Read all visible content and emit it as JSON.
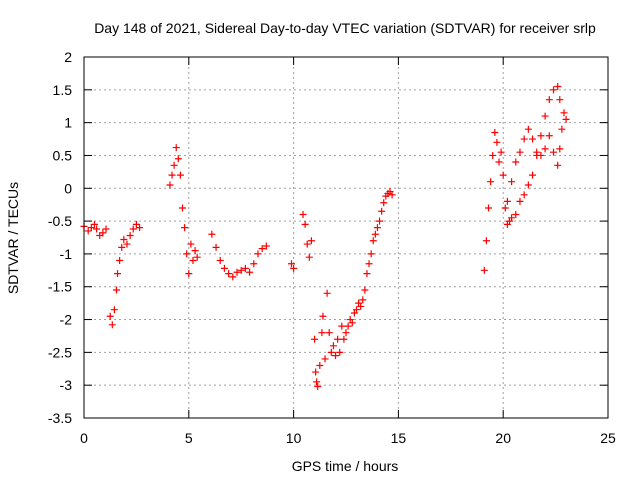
{
  "chart_data": {
    "type": "scatter",
    "title": "Day 148 of 2021, Sidereal Day-to-day VTEC variation (SDTVAR) for receiver srlp",
    "xlabel": "GPS time / hours",
    "ylabel": "SDTVAR / TECUs",
    "xlim": [
      0,
      25
    ],
    "ylim": [
      -3.5,
      2
    ],
    "xticks": [
      0,
      5,
      10,
      15,
      20,
      25
    ],
    "yticks": [
      -3.5,
      -3,
      -2.5,
      -2,
      -1.5,
      -1,
      -0.5,
      0,
      0.5,
      1,
      1.5,
      2
    ],
    "grid": "dotted",
    "marker": "+",
    "series": [
      {
        "color": "#ff0000",
        "segments": [
          [
            [
              0.0,
              -0.58
            ],
            [
              0.2,
              -0.65
            ],
            [
              0.35,
              -0.6
            ],
            [
              0.5,
              -0.55
            ],
            [
              0.6,
              -0.62
            ],
            [
              0.75,
              -0.72
            ],
            [
              0.9,
              -0.68
            ],
            [
              1.05,
              -0.62
            ]
          ],
          [
            [
              1.25,
              -1.95
            ],
            [
              1.35,
              -2.08
            ],
            [
              1.45,
              -1.85
            ],
            [
              1.55,
              -1.55
            ],
            [
              1.6,
              -1.3
            ],
            [
              1.7,
              -1.1
            ],
            [
              1.8,
              -0.9
            ],
            [
              1.9,
              -0.78
            ],
            [
              2.05,
              -0.85
            ],
            [
              2.2,
              -0.72
            ],
            [
              2.35,
              -0.62
            ],
            [
              2.5,
              -0.55
            ],
            [
              2.65,
              -0.6
            ]
          ],
          [
            [
              4.1,
              0.05
            ],
            [
              4.2,
              0.2
            ],
            [
              4.3,
              0.35
            ],
            [
              4.4,
              0.62
            ],
            [
              4.5,
              0.45
            ],
            [
              4.6,
              0.2
            ],
            [
              4.7,
              -0.3
            ],
            [
              4.8,
              -0.6
            ],
            [
              4.9,
              -1.0
            ],
            [
              5.0,
              -1.3
            ],
            [
              5.1,
              -0.85
            ],
            [
              5.2,
              -1.1
            ],
            [
              5.3,
              -0.95
            ],
            [
              5.4,
              -1.05
            ]
          ],
          [
            [
              6.1,
              -0.7
            ],
            [
              6.3,
              -0.9
            ],
            [
              6.5,
              -1.1
            ],
            [
              6.7,
              -1.22
            ],
            [
              6.9,
              -1.3
            ],
            [
              7.1,
              -1.35
            ],
            [
              7.3,
              -1.28
            ],
            [
              7.5,
              -1.25
            ],
            [
              7.7,
              -1.22
            ],
            [
              7.9,
              -1.28
            ],
            [
              8.1,
              -1.15
            ],
            [
              8.3,
              -1.0
            ],
            [
              8.5,
              -0.92
            ],
            [
              8.7,
              -0.88
            ]
          ],
          [
            [
              9.9,
              -1.15
            ],
            [
              10.0,
              -1.22
            ]
          ],
          [
            [
              10.45,
              -0.4
            ],
            [
              10.55,
              -0.55
            ],
            [
              10.65,
              -0.85
            ],
            [
              10.75,
              -1.05
            ],
            [
              10.85,
              -0.8
            ]
          ],
          [
            [
              11.0,
              -2.3
            ],
            [
              11.05,
              -2.8
            ],
            [
              11.1,
              -2.95
            ],
            [
              11.15,
              -3.02
            ],
            [
              11.25,
              -2.7
            ],
            [
              11.35,
              -2.2
            ],
            [
              11.4,
              -1.95
            ],
            [
              11.5,
              -2.6
            ],
            [
              11.6,
              -1.6
            ],
            [
              11.7,
              -2.2
            ],
            [
              11.8,
              -2.5
            ],
            [
              11.9,
              -2.4
            ],
            [
              12.0,
              -2.55
            ],
            [
              12.1,
              -2.3
            ],
            [
              12.2,
              -2.5
            ],
            [
              12.3,
              -2.1
            ],
            [
              12.4,
              -2.3
            ],
            [
              12.5,
              -2.2
            ],
            [
              12.6,
              -2.1
            ],
            [
              12.7,
              -2.0
            ],
            [
              12.8,
              -2.05
            ],
            [
              12.9,
              -1.9
            ],
            [
              13.0,
              -1.85
            ],
            [
              13.1,
              -1.75
            ],
            [
              13.2,
              -1.8
            ],
            [
              13.3,
              -1.7
            ],
            [
              13.4,
              -1.55
            ],
            [
              13.5,
              -1.3
            ],
            [
              13.6,
              -1.15
            ],
            [
              13.7,
              -1.0
            ],
            [
              13.8,
              -0.8
            ],
            [
              13.9,
              -0.7
            ],
            [
              14.0,
              -0.6
            ],
            [
              14.1,
              -0.5
            ],
            [
              14.2,
              -0.35
            ],
            [
              14.3,
              -0.22
            ],
            [
              14.4,
              -0.12
            ],
            [
              14.5,
              -0.08
            ],
            [
              14.6,
              -0.05
            ],
            [
              14.7,
              -0.1
            ]
          ],
          [
            [
              19.1,
              -1.25
            ],
            [
              19.2,
              -0.8
            ],
            [
              19.3,
              -0.3
            ],
            [
              19.4,
              0.1
            ],
            [
              19.5,
              0.5
            ],
            [
              19.6,
              0.85
            ],
            [
              19.7,
              0.7
            ],
            [
              19.8,
              0.4
            ],
            [
              19.9,
              0.55
            ],
            [
              20.0,
              0.2
            ],
            [
              20.1,
              -0.3
            ],
            [
              20.2,
              -0.55
            ],
            [
              20.3,
              -0.5
            ],
            [
              20.4,
              -0.45
            ],
            [
              20.6,
              -0.4
            ],
            [
              20.8,
              -0.2
            ],
            [
              21.0,
              -0.1
            ],
            [
              21.2,
              0.05
            ],
            [
              21.4,
              0.2
            ],
            [
              21.6,
              0.5
            ],
            [
              21.8,
              0.8
            ],
            [
              22.0,
              1.1
            ],
            [
              22.2,
              1.35
            ],
            [
              22.4,
              1.5
            ],
            [
              22.6,
              1.55
            ],
            [
              22.7,
              1.35
            ]
          ],
          [
            [
              20.2,
              -0.2
            ],
            [
              20.4,
              0.1
            ],
            [
              20.6,
              0.4
            ],
            [
              20.8,
              0.55
            ],
            [
              21.0,
              0.75
            ],
            [
              21.2,
              0.9
            ],
            [
              21.4,
              0.75
            ],
            [
              21.6,
              0.55
            ],
            [
              21.8,
              0.5
            ],
            [
              22.0,
              0.6
            ],
            [
              22.2,
              0.8
            ],
            [
              22.4,
              0.55
            ],
            [
              22.6,
              0.35
            ],
            [
              22.7,
              0.6
            ],
            [
              22.8,
              0.9
            ],
            [
              22.9,
              1.15
            ],
            [
              23.0,
              1.05
            ]
          ]
        ]
      }
    ]
  }
}
